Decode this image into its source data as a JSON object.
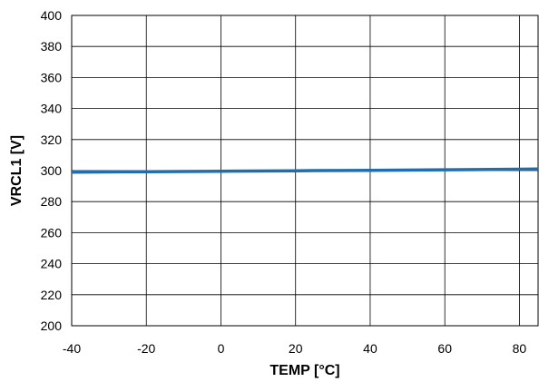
{
  "chart_data": {
    "type": "line",
    "title": "",
    "xlabel": "TEMP [°C]",
    "ylabel": "VRCL1 [V]",
    "xlim": [
      -40,
      85
    ],
    "ylim": [
      200,
      400
    ],
    "xticks": [
      -40,
      -20,
      0,
      20,
      40,
      60,
      80
    ],
    "yticks": [
      200,
      220,
      240,
      260,
      280,
      300,
      320,
      340,
      360,
      380,
      400
    ],
    "grid": true,
    "legend": "none",
    "series": [
      {
        "color": "#1f6fb0",
        "x": [
          -40,
          -20,
          0,
          20,
          25,
          40,
          60,
          80,
          85
        ],
        "y": [
          299.0,
          299.3,
          299.6,
          299.9,
          300.0,
          300.2,
          300.5,
          300.9,
          301.0
        ]
      }
    ]
  }
}
